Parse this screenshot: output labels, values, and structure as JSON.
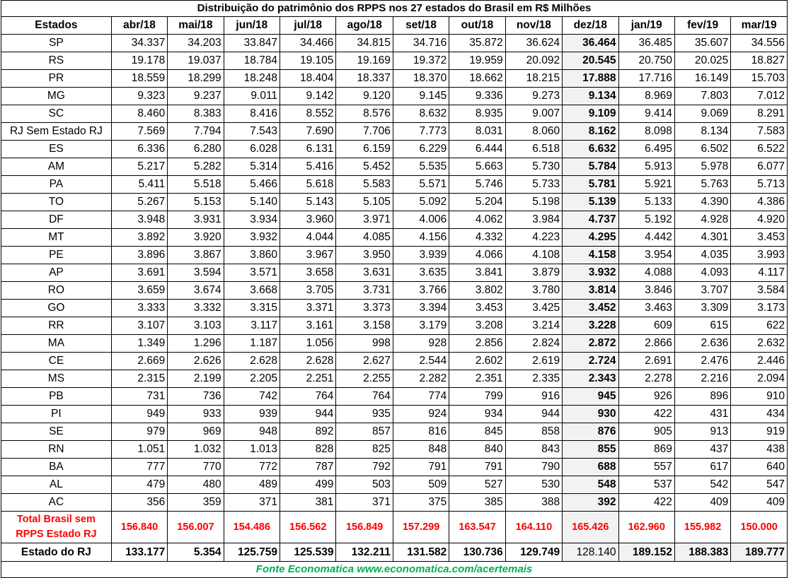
{
  "title": "Distribuição do patrimônio dos RPPS nos 27 estados do Brasil em R$ Milhões",
  "header": [
    "Estados",
    "abr/18",
    "mai/18",
    "jun/18",
    "jul/18",
    "ago/18",
    "set/18",
    "out/18",
    "nov/18",
    "dez/18",
    "jan/19",
    "fev/19",
    "mar/19"
  ],
  "rows": [
    [
      "SP",
      "34.337",
      "34.203",
      "33.847",
      "34.466",
      "34.815",
      "34.716",
      "35.872",
      "36.624",
      "36.464",
      "36.485",
      "35.607",
      "34.556"
    ],
    [
      "RS",
      "19.178",
      "19.037",
      "18.784",
      "19.105",
      "19.169",
      "19.372",
      "19.959",
      "20.092",
      "20.545",
      "20.750",
      "20.025",
      "18.827"
    ],
    [
      "PR",
      "18.559",
      "18.299",
      "18.248",
      "18.404",
      "18.337",
      "18.370",
      "18.662",
      "18.215",
      "17.888",
      "17.716",
      "16.149",
      "15.703"
    ],
    [
      "MG",
      "9.323",
      "9.237",
      "9.011",
      "9.142",
      "9.120",
      "9.145",
      "9.336",
      "9.273",
      "9.134",
      "8.969",
      "7.803",
      "7.012"
    ],
    [
      "SC",
      "8.460",
      "8.383",
      "8.416",
      "8.552",
      "8.576",
      "8.632",
      "8.935",
      "9.007",
      "9.109",
      "9.414",
      "9.069",
      "8.291"
    ],
    [
      "RJ Sem Estado RJ",
      "7.569",
      "7.794",
      "7.543",
      "7.690",
      "7.706",
      "7.773",
      "8.031",
      "8.060",
      "8.162",
      "8.098",
      "8.134",
      "7.583"
    ],
    [
      "ES",
      "6.336",
      "6.280",
      "6.028",
      "6.131",
      "6.159",
      "6.229",
      "6.444",
      "6.518",
      "6.632",
      "6.495",
      "6.502",
      "6.522"
    ],
    [
      "AM",
      "5.217",
      "5.282",
      "5.314",
      "5.416",
      "5.452",
      "5.535",
      "5.663",
      "5.730",
      "5.784",
      "5.913",
      "5.978",
      "6.077"
    ],
    [
      "PA",
      "5.411",
      "5.518",
      "5.466",
      "5.618",
      "5.583",
      "5.571",
      "5.746",
      "5.733",
      "5.781",
      "5.921",
      "5.763",
      "5.713"
    ],
    [
      "TO",
      "5.267",
      "5.153",
      "5.140",
      "5.143",
      "5.105",
      "5.092",
      "5.204",
      "5.198",
      "5.139",
      "5.133",
      "4.390",
      "4.386"
    ],
    [
      "DF",
      "3.948",
      "3.931",
      "3.934",
      "3.960",
      "3.971",
      "4.006",
      "4.062",
      "3.984",
      "4.737",
      "5.192",
      "4.928",
      "4.920"
    ],
    [
      "MT",
      "3.892",
      "3.920",
      "3.932",
      "4.044",
      "4.085",
      "4.156",
      "4.332",
      "4.223",
      "4.295",
      "4.442",
      "4.301",
      "3.453"
    ],
    [
      "PE",
      "3.896",
      "3.867",
      "3.860",
      "3.967",
      "3.950",
      "3.939",
      "4.066",
      "4.108",
      "4.158",
      "3.954",
      "4.035",
      "3.993"
    ],
    [
      "AP",
      "3.691",
      "3.594",
      "3.571",
      "3.658",
      "3.631",
      "3.635",
      "3.841",
      "3.879",
      "3.932",
      "4.088",
      "4.093",
      "4.117"
    ],
    [
      "RO",
      "3.659",
      "3.674",
      "3.668",
      "3.705",
      "3.731",
      "3.766",
      "3.802",
      "3.780",
      "3.814",
      "3.846",
      "3.707",
      "3.584"
    ],
    [
      "GO",
      "3.333",
      "3.332",
      "3.315",
      "3.371",
      "3.373",
      "3.394",
      "3.453",
      "3.425",
      "3.452",
      "3.463",
      "3.309",
      "3.173"
    ],
    [
      "RR",
      "3.107",
      "3.103",
      "3.117",
      "3.161",
      "3.158",
      "3.179",
      "3.208",
      "3.214",
      "3.228",
      "609",
      "615",
      "622"
    ],
    [
      "MA",
      "1.349",
      "1.296",
      "1.187",
      "1.056",
      "998",
      "928",
      "2.856",
      "2.824",
      "2.872",
      "2.866",
      "2.636",
      "2.632"
    ],
    [
      "CE",
      "2.669",
      "2.626",
      "2.628",
      "2.628",
      "2.627",
      "2.544",
      "2.602",
      "2.619",
      "2.724",
      "2.691",
      "2.476",
      "2.446"
    ],
    [
      "MS",
      "2.315",
      "2.199",
      "2.205",
      "2.251",
      "2.255",
      "2.282",
      "2.351",
      "2.335",
      "2.343",
      "2.278",
      "2.216",
      "2.094"
    ],
    [
      "PB",
      "731",
      "736",
      "742",
      "764",
      "764",
      "774",
      "799",
      "916",
      "945",
      "926",
      "896",
      "910"
    ],
    [
      "PI",
      "949",
      "933",
      "939",
      "944",
      "935",
      "924",
      "934",
      "944",
      "930",
      "422",
      "431",
      "434"
    ],
    [
      "SE",
      "979",
      "969",
      "948",
      "892",
      "857",
      "816",
      "845",
      "858",
      "876",
      "905",
      "913",
      "919"
    ],
    [
      "RN",
      "1.051",
      "1.032",
      "1.013",
      "828",
      "825",
      "848",
      "840",
      "843",
      "855",
      "869",
      "437",
      "438"
    ],
    [
      "BA",
      "777",
      "770",
      "772",
      "787",
      "792",
      "791",
      "791",
      "790",
      "688",
      "557",
      "617",
      "640"
    ],
    [
      "AL",
      "479",
      "480",
      "489",
      "499",
      "503",
      "509",
      "527",
      "530",
      "548",
      "537",
      "542",
      "547"
    ],
    [
      "AC",
      "356",
      "359",
      "371",
      "381",
      "371",
      "375",
      "385",
      "388",
      "392",
      "422",
      "409",
      "409"
    ]
  ],
  "total_row": {
    "label_line1": "Total Brasil sem",
    "label_line2": "RPPS Estado RJ",
    "values": [
      "156.840",
      "156.007",
      "154.486",
      "156.562",
      "156.849",
      "157.299",
      "163.547",
      "164.110",
      "165.426",
      "162.960",
      "155.982",
      "150.000"
    ]
  },
  "rj_row": {
    "label": "Estado do RJ",
    "values": [
      "133.177",
      "5.354",
      "125.759",
      "125.539",
      "132.211",
      "131.582",
      "130.736",
      "129.749",
      "128.140",
      "189.152",
      "188.383",
      "189.777"
    ]
  },
  "source": "Fonte Economatica www.economatica.com/acertemais",
  "colors": {
    "total_text": "#ff0000",
    "source_text": "#00b050",
    "highlight_bg": "#f2f2f2"
  }
}
